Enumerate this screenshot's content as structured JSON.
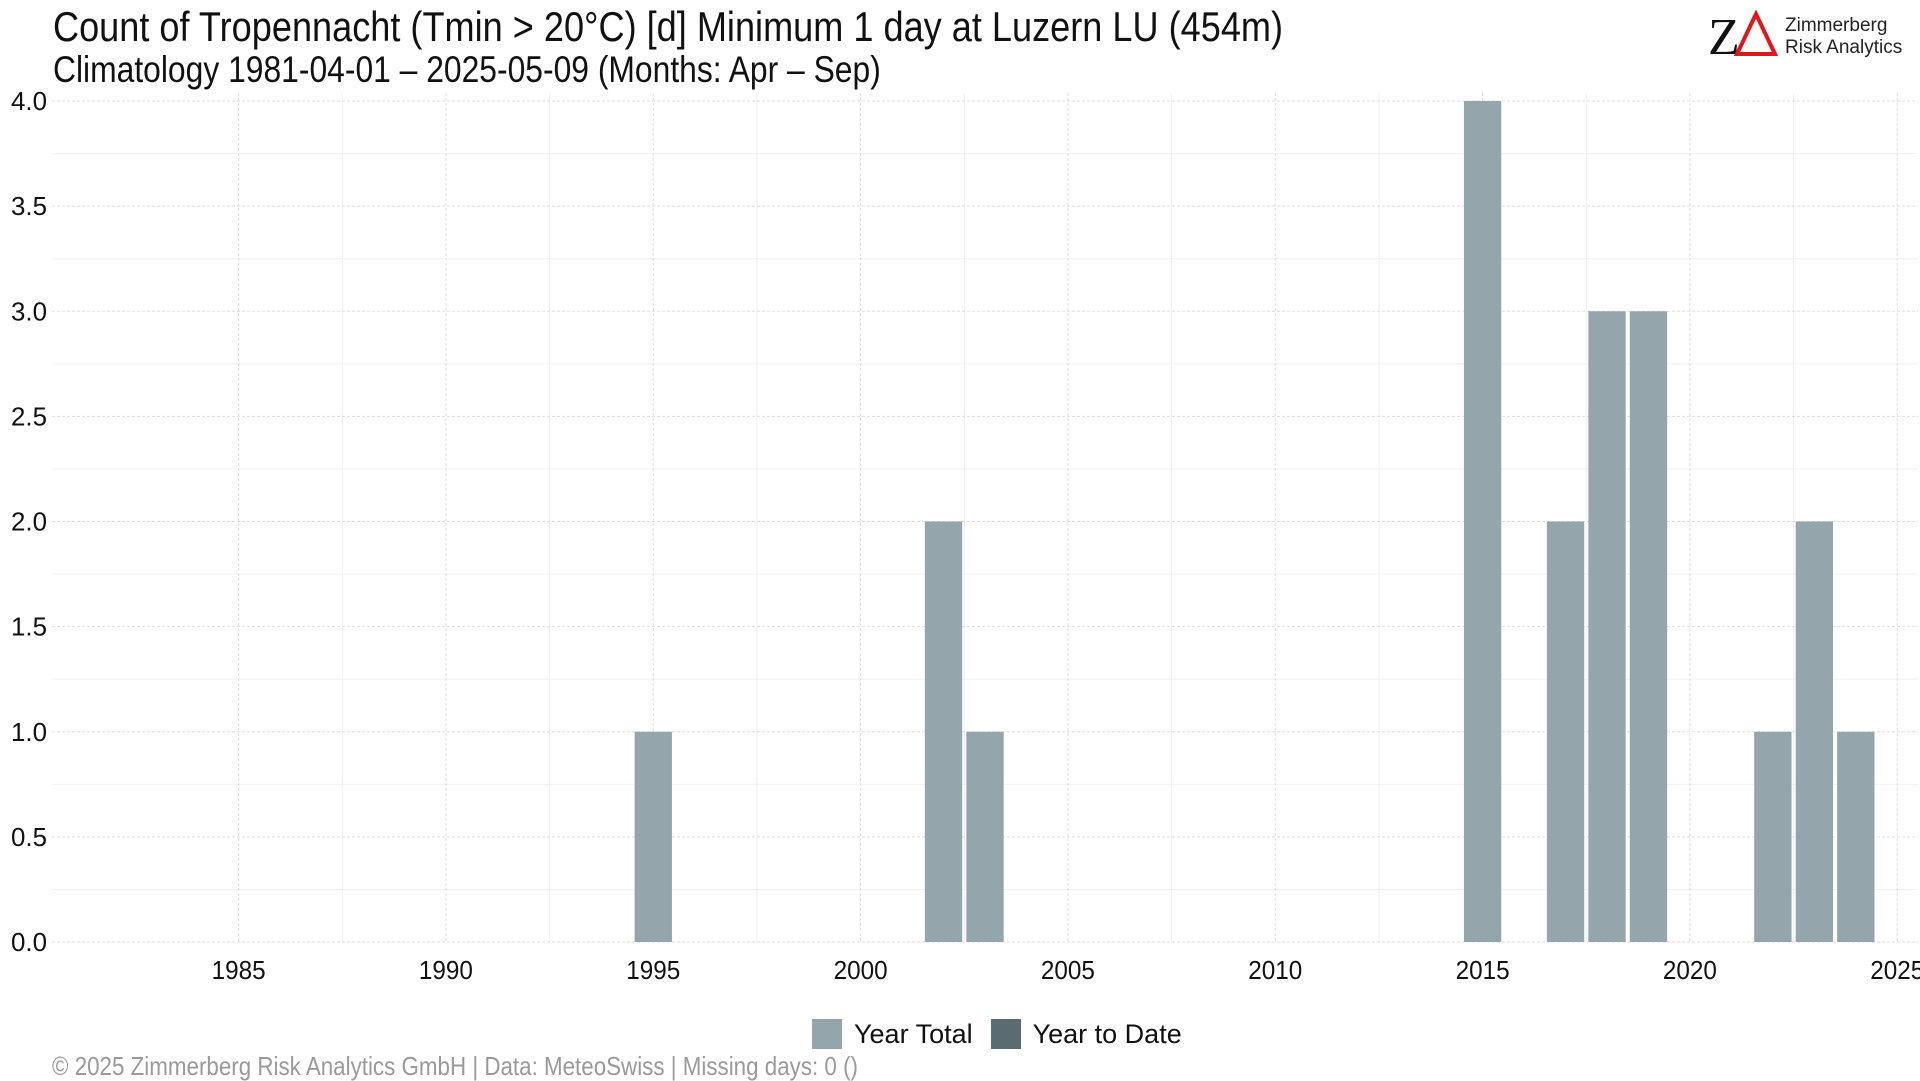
{
  "header": {
    "title": "Count of Tropennacht (Tmin > 20°C) [d] Minimum 1 day at Luzern  LU (454m)",
    "subtitle": "Climatology 1981-04-01 – 2025-05-09 (Months: Apr – Sep)"
  },
  "logo": {
    "mark": "ZΔ",
    "line1": "Zimmerberg",
    "line2": "Risk Analytics",
    "delta_color": "#e0161a"
  },
  "footer": {
    "text": "©  2025 Zimmerberg Risk Analytics GmbH | Data: MeteoSwiss | Missing days: 0 ()"
  },
  "chart_data": {
    "type": "bar",
    "xlim": [
      1980.5,
      2025.5
    ],
    "ylim": [
      0,
      4
    ],
    "x_ticks": [
      1985,
      1990,
      1995,
      2000,
      2005,
      2010,
      2015,
      2020,
      2025
    ],
    "y_ticks": [
      "0.0",
      "0.5",
      "1.0",
      "1.5",
      "2.0",
      "2.5",
      "3.0",
      "3.5",
      "4.0"
    ],
    "grid": true,
    "legend_position": "bottom",
    "series": [
      {
        "name": "Year Total",
        "color": "#94a6ac",
        "x": [
          1995,
          2002,
          2003,
          2015,
          2017,
          2018,
          2019,
          2022,
          2023,
          2024
        ],
        "values": [
          1,
          2,
          1,
          4,
          2,
          3,
          3,
          1,
          2,
          1
        ]
      },
      {
        "name": "Year to Date",
        "color": "#5a6b71",
        "x": [
          2025
        ],
        "values": [
          0
        ]
      }
    ]
  }
}
